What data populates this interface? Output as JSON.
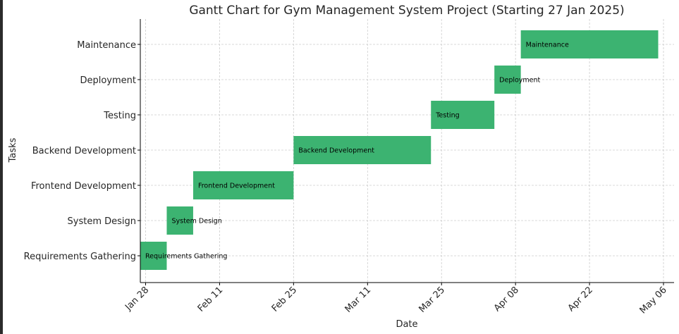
{
  "chart_data": {
    "type": "gantt",
    "title": "Gantt Chart for Gym Management System Project (Starting 27 Jan 2025)",
    "xlabel": "Date",
    "ylabel": "Tasks",
    "x_range": [
      "2025-01-27",
      "2025-05-08"
    ],
    "x_ticks": [
      {
        "date": "2025-01-28",
        "label": "Jan 28"
      },
      {
        "date": "2025-02-11",
        "label": "Feb 11"
      },
      {
        "date": "2025-02-25",
        "label": "Feb 25"
      },
      {
        "date": "2025-03-11",
        "label": "Mar 11"
      },
      {
        "date": "2025-03-25",
        "label": "Mar 25"
      },
      {
        "date": "2025-04-08",
        "label": "Apr 08"
      },
      {
        "date": "2025-04-22",
        "label": "Apr 22"
      },
      {
        "date": "2025-05-06",
        "label": "May 06"
      }
    ],
    "grid": true,
    "bar_color": "#3cb371",
    "tasks": [
      {
        "name": "Requirements Gathering",
        "start": "2025-01-27",
        "end": "2025-02-01"
      },
      {
        "name": "System Design",
        "start": "2025-02-01",
        "end": "2025-02-06"
      },
      {
        "name": "Frontend Development",
        "start": "2025-02-06",
        "end": "2025-02-25"
      },
      {
        "name": "Backend Development",
        "start": "2025-02-25",
        "end": "2025-03-23"
      },
      {
        "name": "Testing",
        "start": "2025-03-23",
        "end": "2025-04-04"
      },
      {
        "name": "Deployment",
        "start": "2025-04-04",
        "end": "2025-04-09"
      },
      {
        "name": "Maintenance",
        "start": "2025-04-09",
        "end": "2025-05-05"
      }
    ]
  }
}
